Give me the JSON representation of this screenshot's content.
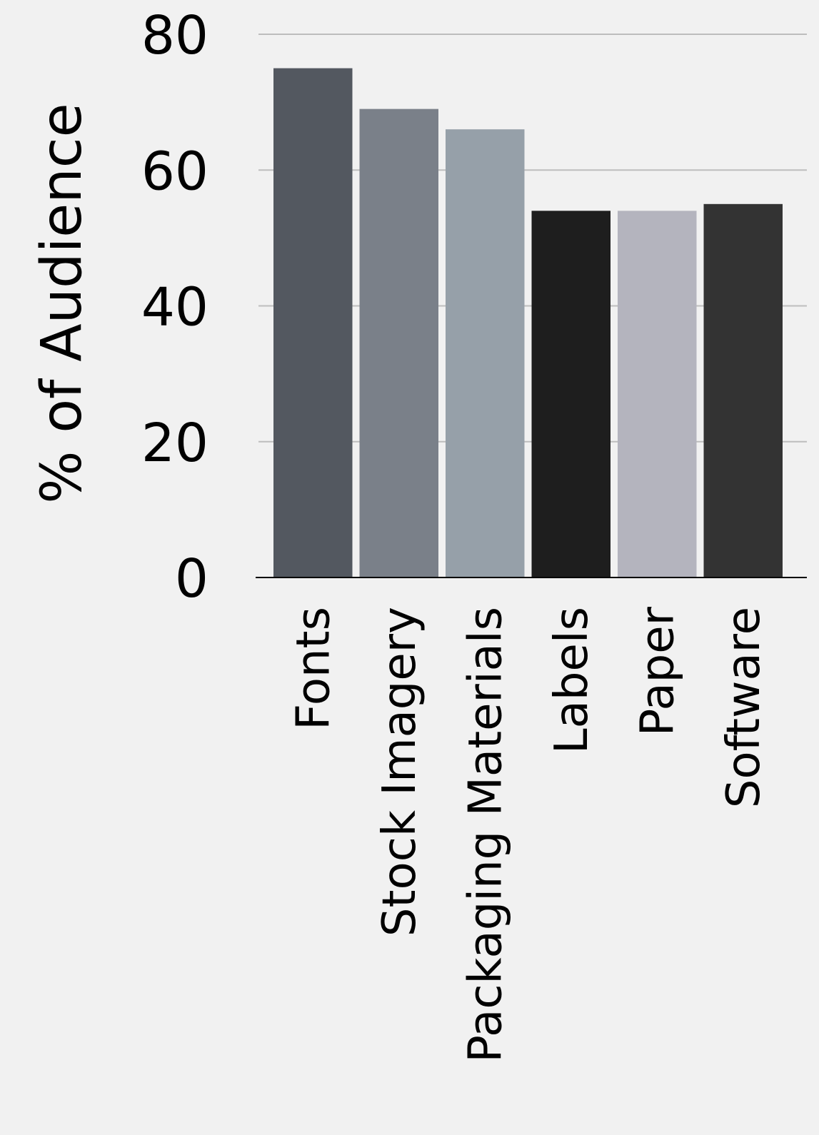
{
  "chart_data": {
    "type": "bar",
    "title": "",
    "xlabel": "",
    "ylabel": "% of Audience",
    "categories": [
      "Fonts",
      "Stock Imagery",
      "Packaging Materials",
      "Labels",
      "Paper",
      "Software"
    ],
    "values": [
      75,
      69,
      66,
      54,
      54,
      55
    ],
    "colors": [
      "#535860",
      "#7a8089",
      "#96a0a9",
      "#1e1e1e",
      "#b4b4be",
      "#333333"
    ],
    "ylim": [
      0,
      80
    ],
    "yticks": [
      0,
      20,
      40,
      60,
      80
    ],
    "grid": true,
    "legend": "none"
  }
}
